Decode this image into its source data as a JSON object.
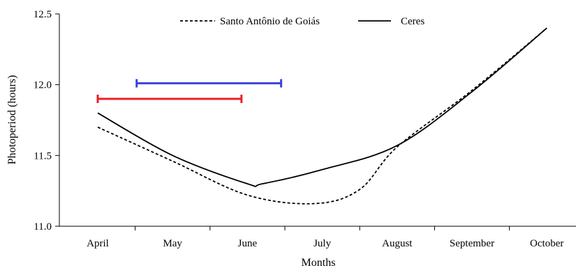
{
  "chart_data": {
    "type": "line",
    "title": "",
    "xlabel": "Months",
    "ylabel": "Photoperiod (hours)",
    "categories": [
      "April",
      "May",
      "June",
      "July",
      "August",
      "September",
      "October"
    ],
    "yticks": [
      "11.0",
      "11.5",
      "12.0",
      "12.5"
    ],
    "ylim": [
      11.0,
      12.5
    ],
    "grid": false,
    "legend_position": "top-center",
    "series": [
      {
        "name": "Santo Antônio de Goiás",
        "style": "dashed",
        "color": "#000000",
        "points": [
          {
            "x": 0,
            "y": 11.7
          },
          {
            "x": 1,
            "y": 11.46
          },
          {
            "x": 2,
            "y": 11.22
          },
          {
            "x": 2.9,
            "y": 11.16
          },
          {
            "x": 3.5,
            "y": 11.26
          },
          {
            "x": 4,
            "y": 11.56
          },
          {
            "x": 5,
            "y": 11.96
          },
          {
            "x": 6,
            "y": 12.4
          }
        ]
      },
      {
        "name": "Ceres",
        "style": "solid",
        "color": "#000000",
        "points": [
          {
            "x": 0,
            "y": 11.8
          },
          {
            "x": 1,
            "y": 11.5
          },
          {
            "x": 2,
            "y": 11.3
          },
          {
            "x": 2.2,
            "y": 11.3
          },
          {
            "x": 3,
            "y": 11.4
          },
          {
            "x": 4,
            "y": 11.57
          },
          {
            "x": 5,
            "y": 11.95
          },
          {
            "x": 6,
            "y": 12.4
          }
        ]
      }
    ],
    "ranges": [
      {
        "color": "#3b45d4",
        "x_start": 0.52,
        "x_end": 2.45,
        "y": 12.01
      },
      {
        "color": "#e8202a",
        "x_start": 0.0,
        "x_end": 1.92,
        "y": 11.9
      }
    ]
  }
}
